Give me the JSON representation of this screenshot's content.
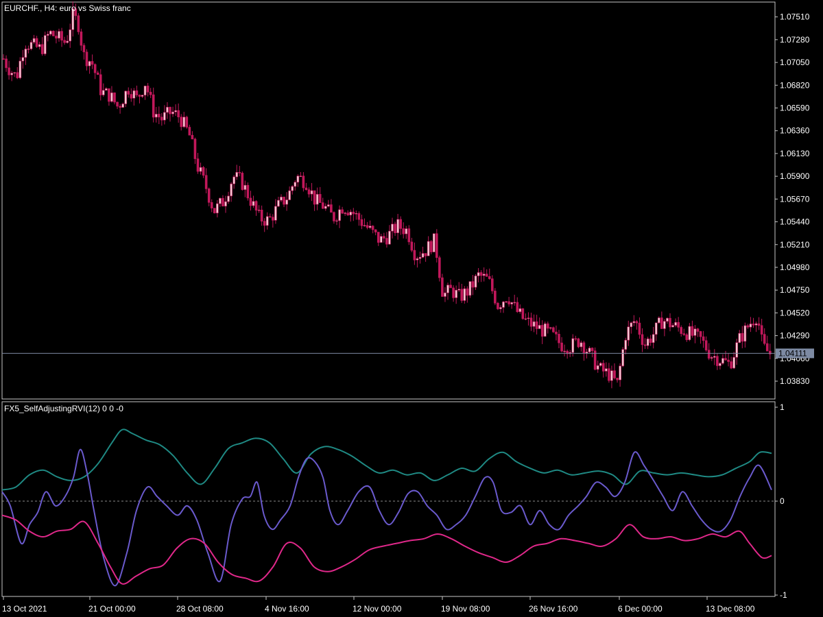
{
  "header": {
    "main_title": "EURCHF., H4:  euro vs Swiss franc",
    "indicator_title": "FX5_SelfAdjustingRVI(12) 0 0 -0"
  },
  "colors": {
    "background": "#000000",
    "frame": "#c8c8c8",
    "candle": "#c2185b",
    "candle_up_body": "#f3c8d2",
    "price_line": "#7d8aa3",
    "price_label_bg": "#7d8aa3",
    "rvi_line": "#6a5acd",
    "upper_band": "#1f8a84",
    "lower_band": "#e0288a",
    "zero_line": "#8c8c8c"
  },
  "chart_data": [
    {
      "type": "candlestick",
      "title": "EURCHF., H4:  euro vs Swiss franc",
      "y_ticks": [
        "1.07510",
        "1.07280",
        "1.07050",
        "1.06820",
        "1.06590",
        "1.06360",
        "1.06130",
        "1.05900",
        "1.05670",
        "1.05440",
        "1.05210",
        "1.04980",
        "1.04750",
        "1.04520",
        "1.04290",
        "1.04060",
        "1.03830"
      ],
      "ylim": [
        1.0365,
        1.0766
      ],
      "current_price": "1.04111",
      "x_ticks": [
        "13 Oct 2021",
        "21 Oct 00:00",
        "28 Oct 08:00",
        "4 Nov 16:00",
        "12 Nov 00:00",
        "19 Nov 08:00",
        "26 Nov 16:00",
        "6 Dec 00:00",
        "13 Dec 08:00"
      ],
      "close_path": [
        [
          0,
          1.0715
        ],
        [
          12,
          1.07
        ],
        [
          24,
          1.069
        ],
        [
          36,
          1.0725
        ],
        [
          48,
          1.0722
        ],
        [
          60,
          1.0718
        ],
        [
          72,
          1.0735
        ],
        [
          84,
          1.073
        ],
        [
          96,
          1.0725
        ],
        [
          106,
          1.0752
        ],
        [
          114,
          1.0745
        ],
        [
          122,
          1.0712
        ],
        [
          134,
          1.0705
        ],
        [
          148,
          1.0675
        ],
        [
          160,
          1.0672
        ],
        [
          172,
          1.066
        ],
        [
          188,
          1.068
        ],
        [
          200,
          1.0668
        ],
        [
          212,
          1.0685
        ],
        [
          224,
          1.0655
        ],
        [
          236,
          1.0648
        ],
        [
          250,
          1.0655
        ],
        [
          262,
          1.065
        ],
        [
          276,
          1.0632
        ],
        [
          288,
          1.06
        ],
        [
          300,
          1.058
        ],
        [
          312,
          1.0555
        ],
        [
          326,
          1.0565
        ],
        [
          340,
          1.059
        ],
        [
          352,
          1.0585
        ],
        [
          366,
          1.0565
        ],
        [
          378,
          1.0548
        ],
        [
          392,
          1.0545
        ],
        [
          406,
          1.056
        ],
        [
          420,
          1.057
        ],
        [
          432,
          1.059
        ],
        [
          446,
          1.0585
        ],
        [
          460,
          1.0565
        ],
        [
          472,
          1.056
        ],
        [
          486,
          1.0548
        ],
        [
          500,
          1.056
        ],
        [
          512,
          1.0555
        ],
        [
          526,
          1.0545
        ],
        [
          540,
          1.0535
        ],
        [
          554,
          1.0525
        ],
        [
          566,
          1.053
        ],
        [
          580,
          1.054
        ],
        [
          594,
          1.0535
        ],
        [
          606,
          1.051
        ],
        [
          620,
          1.0515
        ],
        [
          634,
          1.0525
        ],
        [
          646,
          1.047
        ],
        [
          658,
          1.0475
        ],
        [
          670,
          1.0468
        ],
        [
          684,
          1.0475
        ],
        [
          698,
          1.049
        ],
        [
          712,
          1.0485
        ],
        [
          726,
          1.046
        ],
        [
          740,
          1.047
        ],
        [
          752,
          1.0455
        ],
        [
          764,
          1.0445
        ],
        [
          776,
          1.044
        ],
        [
          790,
          1.0435
        ],
        [
          804,
          1.043
        ],
        [
          818,
          1.042
        ],
        [
          832,
          1.0418
        ],
        [
          846,
          1.0425
        ],
        [
          860,
          1.041
        ],
        [
          874,
          1.0395
        ],
        [
          888,
          1.039
        ],
        [
          900,
          1.038
        ],
        [
          912,
          1.043
        ],
        [
          926,
          1.0445
        ],
        [
          940,
          1.042
        ],
        [
          952,
          1.043
        ],
        [
          966,
          1.0445
        ],
        [
          980,
          1.044
        ],
        [
          994,
          1.0435
        ],
        [
          1008,
          1.043
        ],
        [
          1022,
          1.0425
        ],
        [
          1036,
          1.041
        ],
        [
          1050,
          1.0405
        ],
        [
          1064,
          1.04
        ],
        [
          1078,
          1.0425
        ],
        [
          1092,
          1.044
        ],
        [
          1104,
          1.045
        ],
        [
          1112,
          1.0418
        ],
        [
          1122,
          1.0411
        ]
      ]
    },
    {
      "type": "line",
      "title": "FX5_SelfAdjustingRVI(12) 0 0 -0",
      "y_ticks": [
        "1",
        "0",
        "-1"
      ],
      "ylim": [
        -1,
        1
      ],
      "series": [
        {
          "key": "upper",
          "values": [
            [
              0,
              0.12
            ],
            [
              20,
              0.15
            ],
            [
              40,
              0.28
            ],
            [
              60,
              0.33
            ],
            [
              80,
              0.26
            ],
            [
              100,
              0.22
            ],
            [
              120,
              0.26
            ],
            [
              140,
              0.4
            ],
            [
              160,
              0.62
            ],
            [
              175,
              0.76
            ],
            [
              190,
              0.72
            ],
            [
              210,
              0.65
            ],
            [
              230,
              0.6
            ],
            [
              250,
              0.48
            ],
            [
              270,
              0.3
            ],
            [
              290,
              0.18
            ],
            [
              310,
              0.35
            ],
            [
              330,
              0.56
            ],
            [
              350,
              0.62
            ],
            [
              370,
              0.67
            ],
            [
              390,
              0.62
            ],
            [
              410,
              0.45
            ],
            [
              430,
              0.3
            ],
            [
              450,
              0.5
            ],
            [
              470,
              0.58
            ],
            [
              490,
              0.55
            ],
            [
              510,
              0.48
            ],
            [
              530,
              0.38
            ],
            [
              550,
              0.3
            ],
            [
              570,
              0.33
            ],
            [
              590,
              0.28
            ],
            [
              610,
              0.3
            ],
            [
              630,
              0.22
            ],
            [
              650,
              0.28
            ],
            [
              670,
              0.35
            ],
            [
              690,
              0.32
            ],
            [
              710,
              0.45
            ],
            [
              730,
              0.52
            ],
            [
              750,
              0.42
            ],
            [
              770,
              0.35
            ],
            [
              790,
              0.3
            ],
            [
              810,
              0.33
            ],
            [
              830,
              0.28
            ],
            [
              850,
              0.3
            ],
            [
              870,
              0.32
            ],
            [
              890,
              0.28
            ],
            [
              910,
              0.18
            ],
            [
              930,
              0.32
            ],
            [
              950,
              0.3
            ],
            [
              970,
              0.28
            ],
            [
              990,
              0.3
            ],
            [
              1010,
              0.28
            ],
            [
              1030,
              0.26
            ],
            [
              1050,
              0.28
            ],
            [
              1070,
              0.35
            ],
            [
              1090,
              0.42
            ],
            [
              1105,
              0.52
            ],
            [
              1122,
              0.51
            ]
          ]
        },
        {
          "key": "rvi",
          "values": [
            [
              0,
              0.1
            ],
            [
              12,
              -0.05
            ],
            [
              28,
              -0.45
            ],
            [
              40,
              -0.25
            ],
            [
              52,
              -0.12
            ],
            [
              64,
              0.1
            ],
            [
              78,
              -0.05
            ],
            [
              92,
              0.05
            ],
            [
              104,
              0.25
            ],
            [
              114,
              0.55
            ],
            [
              124,
              0.3
            ],
            [
              134,
              -0.1
            ],
            [
              148,
              -0.6
            ],
            [
              165,
              -0.9
            ],
            [
              182,
              -0.55
            ],
            [
              196,
              -0.1
            ],
            [
              212,
              0.15
            ],
            [
              226,
              0.05
            ],
            [
              240,
              -0.05
            ],
            [
              256,
              -0.15
            ],
            [
              270,
              -0.05
            ],
            [
              284,
              -0.2
            ],
            [
              300,
              -0.55
            ],
            [
              318,
              -0.85
            ],
            [
              334,
              -0.25
            ],
            [
              350,
              0.02
            ],
            [
              362,
              0.05
            ],
            [
              372,
              0.2
            ],
            [
              382,
              -0.15
            ],
            [
              394,
              -0.3
            ],
            [
              406,
              -0.2
            ],
            [
              420,
              -0.05
            ],
            [
              432,
              0.25
            ],
            [
              444,
              0.45
            ],
            [
              456,
              0.42
            ],
            [
              468,
              0.25
            ],
            [
              478,
              -0.1
            ],
            [
              490,
              -0.25
            ],
            [
              504,
              -0.1
            ],
            [
              520,
              0.1
            ],
            [
              536,
              0.15
            ],
            [
              550,
              -0.1
            ],
            [
              564,
              -0.25
            ],
            [
              578,
              -0.12
            ],
            [
              592,
              0.08
            ],
            [
              606,
              0.1
            ],
            [
              620,
              -0.05
            ],
            [
              634,
              -0.15
            ],
            [
              648,
              -0.3
            ],
            [
              662,
              -0.25
            ],
            [
              676,
              -0.15
            ],
            [
              690,
              0.05
            ],
            [
              704,
              0.25
            ],
            [
              716,
              0.2
            ],
            [
              728,
              -0.1
            ],
            [
              742,
              -0.12
            ],
            [
              756,
              -0.05
            ],
            [
              770,
              -0.25
            ],
            [
              784,
              -0.1
            ],
            [
              798,
              -0.25
            ],
            [
              812,
              -0.3
            ],
            [
              826,
              -0.15
            ],
            [
              840,
              -0.05
            ],
            [
              852,
              0.05
            ],
            [
              866,
              0.2
            ],
            [
              880,
              0.15
            ],
            [
              894,
              0.05
            ],
            [
              908,
              0.2
            ],
            [
              922,
              0.52
            ],
            [
              936,
              0.38
            ],
            [
              950,
              0.22
            ],
            [
              964,
              0.05
            ],
            [
              978,
              -0.1
            ],
            [
              992,
              0.1
            ],
            [
              1006,
              -0.05
            ],
            [
              1020,
              -0.2
            ],
            [
              1034,
              -0.3
            ],
            [
              1048,
              -0.32
            ],
            [
              1062,
              -0.2
            ],
            [
              1076,
              0.05
            ],
            [
              1090,
              0.25
            ],
            [
              1104,
              0.38
            ],
            [
              1122,
              0.12
            ]
          ]
        },
        {
          "key": "lower",
          "values": [
            [
              0,
              -0.15
            ],
            [
              20,
              -0.2
            ],
            [
              40,
              -0.32
            ],
            [
              60,
              -0.38
            ],
            [
              80,
              -0.32
            ],
            [
              100,
              -0.3
            ],
            [
              120,
              -0.22
            ],
            [
              140,
              -0.45
            ],
            [
              158,
              -0.7
            ],
            [
              175,
              -0.88
            ],
            [
              195,
              -0.8
            ],
            [
              215,
              -0.72
            ],
            [
              235,
              -0.68
            ],
            [
              255,
              -0.5
            ],
            [
              275,
              -0.4
            ],
            [
              295,
              -0.45
            ],
            [
              315,
              -0.65
            ],
            [
              335,
              -0.78
            ],
            [
              355,
              -0.82
            ],
            [
              375,
              -0.85
            ],
            [
              395,
              -0.7
            ],
            [
              415,
              -0.45
            ],
            [
              435,
              -0.5
            ],
            [
              455,
              -0.7
            ],
            [
              475,
              -0.75
            ],
            [
              495,
              -0.7
            ],
            [
              515,
              -0.62
            ],
            [
              535,
              -0.52
            ],
            [
              555,
              -0.48
            ],
            [
              575,
              -0.45
            ],
            [
              595,
              -0.42
            ],
            [
              615,
              -0.4
            ],
            [
              635,
              -0.35
            ],
            [
              655,
              -0.4
            ],
            [
              675,
              -0.48
            ],
            [
              695,
              -0.55
            ],
            [
              715,
              -0.6
            ],
            [
              735,
              -0.65
            ],
            [
              755,
              -0.58
            ],
            [
              775,
              -0.48
            ],
            [
              795,
              -0.45
            ],
            [
              815,
              -0.4
            ],
            [
              835,
              -0.42
            ],
            [
              855,
              -0.45
            ],
            [
              875,
              -0.48
            ],
            [
              895,
              -0.4
            ],
            [
              915,
              -0.25
            ],
            [
              935,
              -0.38
            ],
            [
              955,
              -0.4
            ],
            [
              975,
              -0.38
            ],
            [
              995,
              -0.42
            ],
            [
              1015,
              -0.4
            ],
            [
              1035,
              -0.35
            ],
            [
              1055,
              -0.38
            ],
            [
              1075,
              -0.32
            ],
            [
              1090,
              -0.45
            ],
            [
              1108,
              -0.6
            ],
            [
              1122,
              -0.58
            ]
          ]
        }
      ]
    }
  ]
}
